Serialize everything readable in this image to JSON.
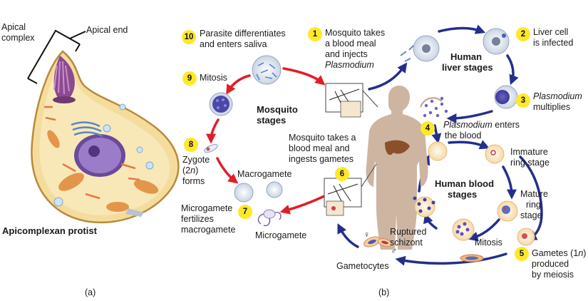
{
  "panel_a": {
    "apical_complex": [
      "Apical",
      "complex"
    ],
    "apical_end": "Apical end",
    "title": "Apicomplexan protist",
    "letter": "(a)"
  },
  "panel_b": {
    "letter": "(b)",
    "steps": [
      {
        "num": "1",
        "lines": [
          "Mosquito takes",
          "a blood meal",
          "and injects"
        ],
        "italic": "Plasmodium"
      },
      {
        "num": "2",
        "lines": [
          "Liver cell",
          "is infected"
        ]
      },
      {
        "num": "3",
        "italic": "Plasmodium",
        "lines": [
          "multiplies"
        ]
      },
      {
        "num": "4",
        "italic": "Plasmodium",
        "rest": " enters",
        "lines": [
          "the blood"
        ]
      },
      {
        "num": "5",
        "lines": [
          "Gametes (1",
          "n",
          ")",
          "produced",
          "by meiosis"
        ]
      },
      {
        "num": "6",
        "lines": [
          "Mosquito takes a",
          "blood meal and",
          "ingests gametes"
        ]
      },
      {
        "num": "7",
        "lines": [
          "Microgamete",
          "fertilizes",
          "macrogamete"
        ]
      },
      {
        "num": "8",
        "lines": [
          "Zygote",
          "(2",
          "n",
          ")",
          "forms"
        ]
      },
      {
        "num": "9",
        "lines": [
          "Mitosis"
        ]
      },
      {
        "num": "10",
        "lines": [
          "Parasite differentiates",
          "and enters saliva"
        ]
      }
    ],
    "stage_labels": {
      "liver": [
        "Human",
        "liver stages"
      ],
      "blood": [
        "Human blood",
        "stages"
      ],
      "mosquito": [
        "Mosquito",
        "stages"
      ]
    },
    "cell_labels": {
      "immature_ring": [
        "Immature",
        "ring stage"
      ],
      "mature_ring": [
        "Mature",
        "ring",
        "stage"
      ],
      "mitosis": "Mitosis",
      "ruptured": [
        "Ruptured",
        "schizont"
      ],
      "gametocytes": "Gametocytes",
      "macrogamete": "Macrogamete",
      "microgamete": "Microgamete",
      "female": "♀",
      "male": "♂"
    }
  },
  "colors": {
    "arrow_blue": "#232f8c",
    "arrow_red": "#e01e27",
    "badge": "#ffe82a"
  }
}
